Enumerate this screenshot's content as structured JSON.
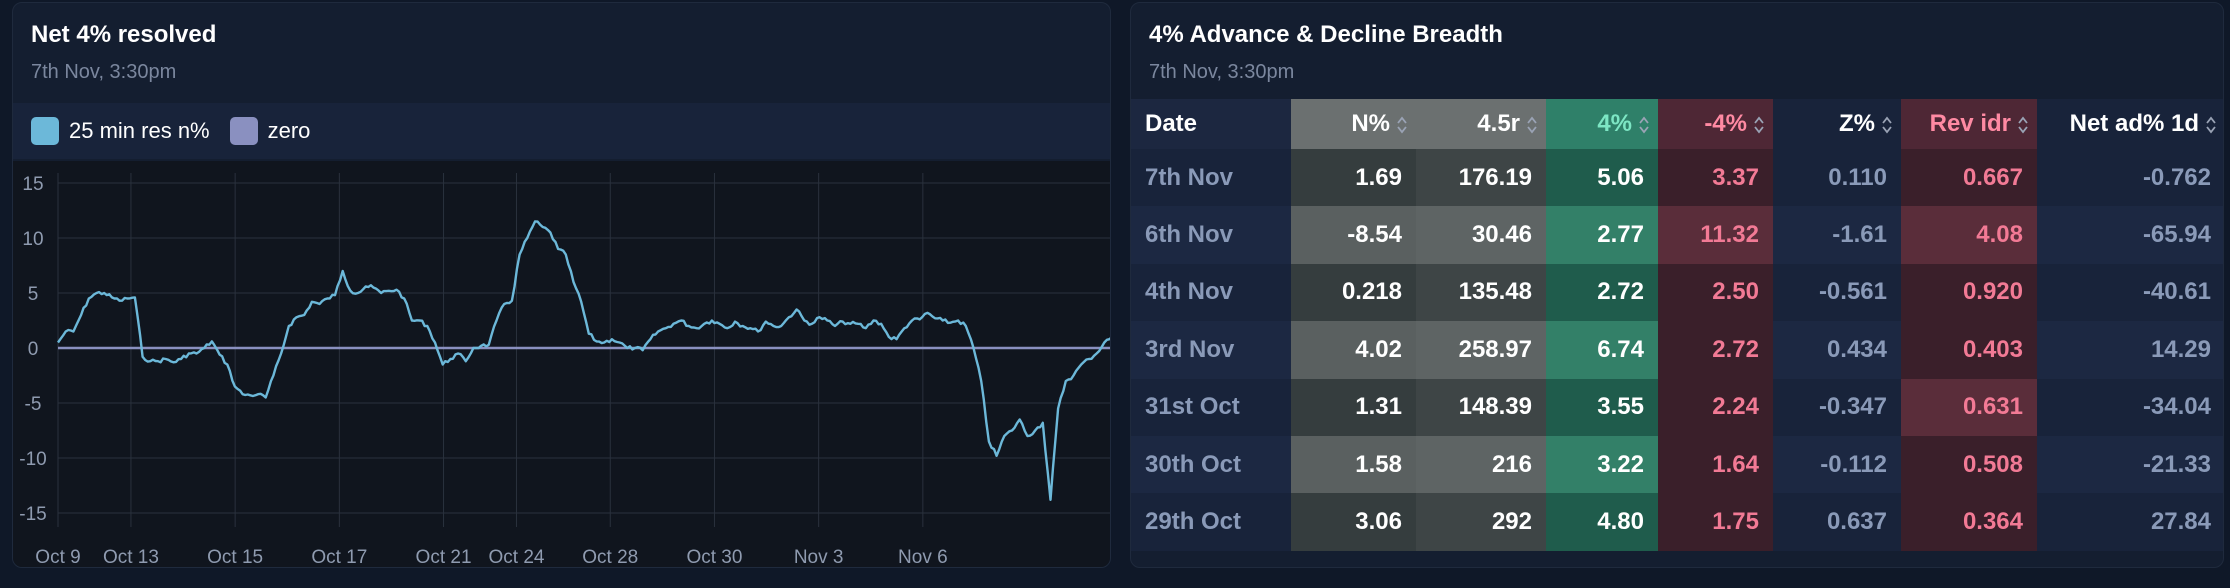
{
  "left_panel": {
    "title": "Net 4% resolved",
    "subtitle": "7th Nov, 3:30pm",
    "legend": [
      {
        "label": "25 min res n%",
        "color": "#6cb8d9"
      },
      {
        "label": "zero",
        "color": "#8a90c0"
      }
    ]
  },
  "chart_data": {
    "type": "line",
    "x_tick_labels": [
      "Oct 9",
      "Oct 13",
      "Oct 15",
      "Oct 17",
      "Oct 21",
      "Oct 24",
      "Oct 28",
      "Oct 30",
      "Nov 3",
      "Nov 6"
    ],
    "y_tick_labels": [
      "15",
      "10",
      "5",
      "0",
      "-5",
      "-10",
      "-15"
    ],
    "ylim": [
      -15,
      15
    ],
    "grid": true,
    "series": [
      {
        "name": "25 min res n%",
        "color": "#6cb8d9",
        "x_range": [
          0,
          100
        ],
        "y": [
          0.5,
          1.5,
          1.5,
          3,
          4.5,
          5,
          5,
          4.6,
          4.3,
          4.5,
          4.6,
          -0.8,
          -1.2,
          -1.2,
          -1.0,
          -1.3,
          -1.0,
          -0.5,
          -0.5,
          0,
          0.6,
          -0.6,
          -1.5,
          -3.5,
          -4.2,
          -4.3,
          -4.2,
          -4.5,
          -2.5,
          -0.5,
          2,
          2.8,
          3,
          4.2,
          4,
          4.5,
          4.8,
          7,
          5.2,
          5,
          5.6,
          5.5,
          5,
          5.2,
          5.3,
          4.5,
          2.5,
          2.5,
          2,
          0.5,
          -1.5,
          -1,
          -0.5,
          -1.2,
          0,
          0.2,
          0.3,
          2.5,
          4,
          4.3,
          8.5,
          10,
          11.5,
          11,
          10.5,
          9,
          8.5,
          6,
          4.2,
          1.3,
          0.6,
          0.5,
          0.8,
          0.5,
          0,
          0,
          -0.2,
          0.8,
          1.5,
          1.8,
          2.2,
          2.5,
          2,
          1.8,
          2.2,
          2.5,
          2.2,
          1.8,
          2.4,
          2,
          1.8,
          1.5,
          2.4,
          2,
          2,
          2.8,
          3.5,
          2.5,
          2.2,
          2.8,
          2.5,
          2,
          2.4,
          2.2,
          2.2,
          1.8,
          2.5,
          2.2,
          1,
          0.8,
          1.8,
          2.5,
          2.6,
          3.2,
          2.7,
          2.5,
          2.3,
          2.5,
          2,
          0,
          -3,
          -8.5,
          -9.8,
          -8,
          -7.5,
          -6.5,
          -8,
          -7.5,
          -6.8,
          -13.8,
          -5.5,
          -3,
          -2.5,
          -1.5,
          -1,
          -0.5,
          0.5,
          1
        ],
        "x_ticks_at": [
          0,
          7,
          17,
          27,
          37,
          44,
          53,
          63,
          73,
          83
        ]
      },
      {
        "name": "zero",
        "color": "#8a90c0",
        "constant": 0
      }
    ]
  },
  "right_panel": {
    "title": "4% Advance & Decline Breadth",
    "subtitle": "7th Nov, 3:30pm",
    "columns": [
      "Date",
      "N%",
      "4.5r",
      "4%",
      "-4%",
      "Z%",
      "Rev idr",
      "Net ad% 1d"
    ],
    "rows": [
      [
        "7th Nov",
        "1.69",
        "176.19",
        "5.06",
        "3.37",
        "0.110",
        "0.667",
        "-0.762"
      ],
      [
        "6th Nov",
        "-8.54",
        "30.46",
        "2.77",
        "11.32",
        "-1.61",
        "4.08",
        "-65.94"
      ],
      [
        "4th Nov",
        "0.218",
        "135.48",
        "2.72",
        "2.50",
        "-0.561",
        "0.920",
        "-40.61"
      ],
      [
        "3rd Nov",
        "4.02",
        "258.97",
        "6.74",
        "2.72",
        "0.434",
        "0.403",
        "14.29"
      ],
      [
        "31st Oct",
        "1.31",
        "148.39",
        "3.55",
        "2.24",
        "-0.347",
        "0.631",
        "-34.04"
      ],
      [
        "30th Oct",
        "1.58",
        "216",
        "3.22",
        "1.64",
        "-0.112",
        "0.508",
        "-21.33"
      ],
      [
        "29th Oct",
        "3.06",
        "292",
        "4.80",
        "1.75",
        "0.637",
        "0.364",
        "27.84"
      ]
    ],
    "highlight": {
      "N%": [
        false,
        true,
        false,
        true,
        false,
        true,
        false
      ],
      "4.5r": [
        false,
        true,
        false,
        true,
        false,
        true,
        false
      ],
      "4%": [
        false,
        true,
        false,
        true,
        false,
        true,
        false
      ],
      "-4%": [
        false,
        true,
        false,
        false,
        false,
        false,
        false
      ],
      "Rev idr": [
        false,
        true,
        false,
        false,
        true,
        false,
        false
      ]
    }
  }
}
